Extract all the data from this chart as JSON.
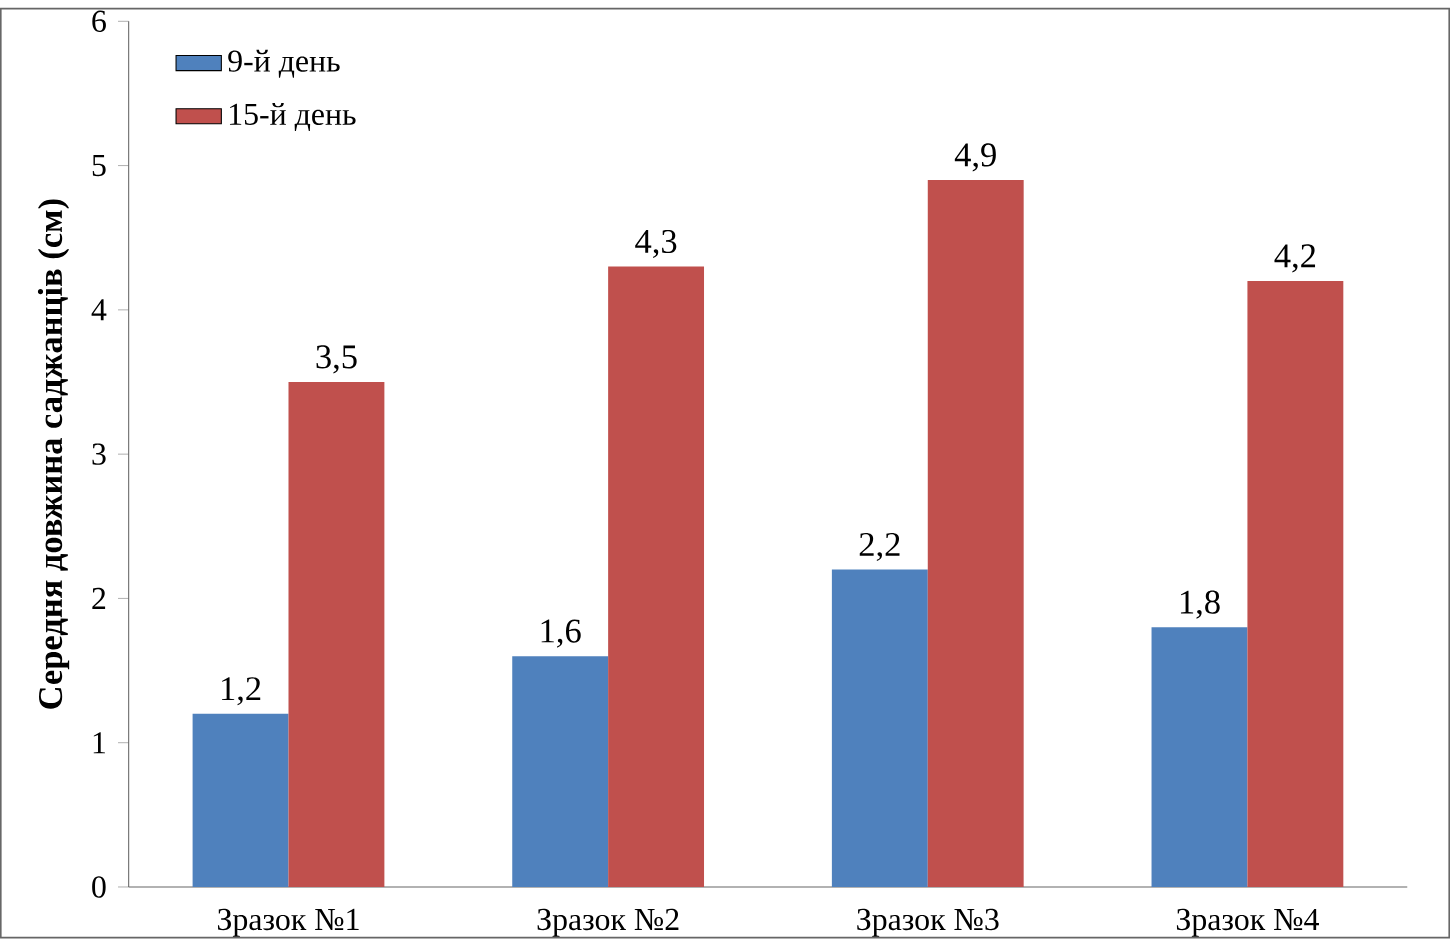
{
  "chart_data": {
    "type": "bar",
    "ylabel": "Середня довжина саджанців (см)",
    "categories": [
      "Зразок №1",
      "Зразок №2",
      "Зразок №3",
      "Зразок №4"
    ],
    "series": [
      {
        "name": "9-й день",
        "color": "#4f81bd",
        "values": [
          1.2,
          1.6,
          2.2,
          1.8
        ],
        "value_labels": [
          "1,2",
          "1,6",
          "2,2",
          "1,8"
        ]
      },
      {
        "name": "15-й день",
        "color": "#c0504d",
        "values": [
          3.5,
          4.3,
          4.9,
          4.2
        ],
        "value_labels": [
          "3,5",
          "4,3",
          "4,9",
          "4,2"
        ]
      }
    ],
    "ylim": [
      0,
      6
    ],
    "yticks": [
      0,
      1,
      2,
      3,
      4,
      5,
      6
    ],
    "grid": false,
    "legend": "top left"
  }
}
